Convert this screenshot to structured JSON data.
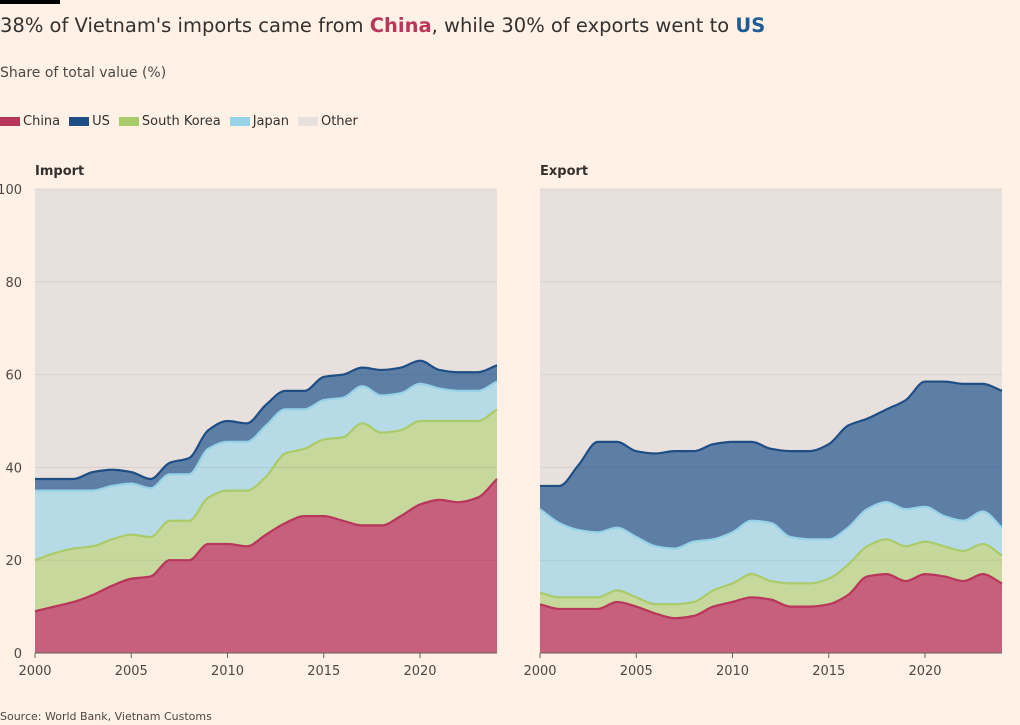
{
  "header": {
    "title_part1": "38% of Vietnam's imports came from ",
    "title_china": "China",
    "title_part2": ", while 30% of exports went to ",
    "title_us": "US",
    "subtitle": "Share of total value (%)"
  },
  "source": "Source: World Bank, Vietnam Customs",
  "colors": {
    "China": "#c6607d",
    "China_line": "#b8365a",
    "US": "#5d7fa6",
    "US_line": "#1f4e84",
    "South Korea": "#c7d89d",
    "South Korea_line": "#a9cb69",
    "Japan": "#b7dbe6",
    "Japan_line": "#98d2e6",
    "Other": "#e8e0dc",
    "grid": "#f5d8c2"
  },
  "chart_data": [
    {
      "type": "area",
      "stacked": true,
      "panel_title": "Import",
      "legend": [
        "China",
        "US",
        "South Korea",
        "Japan",
        "Other"
      ],
      "x": [
        2000,
        2001,
        2002,
        2003,
        2004,
        2005,
        2006,
        2007,
        2008,
        2009,
        2010,
        2011,
        2012,
        2013,
        2014,
        2015,
        2016,
        2017,
        2018,
        2019,
        2020,
        2021,
        2022,
        2023,
        2024
      ],
      "ylim": [
        0,
        100
      ],
      "yticks": [
        0,
        20,
        40,
        60,
        80,
        100
      ],
      "xticks": [
        2000,
        2005,
        2010,
        2015,
        2020
      ],
      "series": [
        {
          "name": "China",
          "values": [
            9,
            10,
            11,
            12.5,
            14.5,
            16,
            16.5,
            20,
            20,
            23.5,
            23.5,
            23,
            25.5,
            28,
            29.5,
            29.5,
            28.5,
            27.5,
            27.5,
            29.5,
            32,
            33,
            32.5,
            33.5,
            37.5
          ]
        },
        {
          "name": "South Korea",
          "values": [
            11,
            11.5,
            11.5,
            10.5,
            10,
            9.5,
            8.5,
            8.5,
            8.5,
            10,
            11.5,
            12,
            12.5,
            15,
            14.5,
            16.5,
            18,
            22,
            20,
            18.5,
            18,
            17,
            17.5,
            16.5,
            15
          ]
        },
        {
          "name": "Japan",
          "values": [
            15,
            13.5,
            12.5,
            12,
            11.5,
            11,
            10.5,
            10,
            10,
            10.5,
            10.5,
            10.5,
            11,
            9.5,
            8.5,
            8.5,
            8.5,
            8,
            8,
            8,
            8,
            7,
            6.5,
            6.5,
            6
          ]
        },
        {
          "name": "US",
          "values": [
            2.5,
            2.5,
            2.5,
            4,
            3.5,
            2.5,
            2,
            2.5,
            3.5,
            4,
            4.5,
            4,
            4.5,
            4,
            4,
            5,
            5,
            4,
            5.5,
            5.5,
            5,
            4,
            4,
            4,
            3.5
          ]
        },
        {
          "name": "Other",
          "values": [
            62.5,
            62.5,
            62.5,
            61,
            60.5,
            61,
            62.5,
            59,
            58,
            52,
            50,
            50.5,
            46.5,
            43.5,
            43.5,
            40.5,
            40,
            38.5,
            39,
            38.5,
            37,
            39,
            39.5,
            39.5,
            38
          ]
        }
      ]
    },
    {
      "type": "area",
      "stacked": true,
      "panel_title": "Export",
      "x": [
        2000,
        2001,
        2002,
        2003,
        2004,
        2005,
        2006,
        2007,
        2008,
        2009,
        2010,
        2011,
        2012,
        2013,
        2014,
        2015,
        2016,
        2017,
        2018,
        2019,
        2020,
        2021,
        2022,
        2023,
        2024
      ],
      "ylim": [
        0,
        100
      ],
      "yticks": [
        0,
        20,
        40,
        60,
        80,
        100
      ],
      "xticks": [
        2000,
        2005,
        2010,
        2015,
        2020
      ],
      "series": [
        {
          "name": "China",
          "values": [
            10.5,
            9.5,
            9.5,
            9.5,
            11,
            10,
            8.5,
            7.5,
            8,
            10,
            11,
            12,
            11.5,
            10,
            10,
            10.5,
            12.5,
            16.5,
            17,
            15.5,
            17,
            16.5,
            15.5,
            17,
            15
          ]
        },
        {
          "name": "South Korea",
          "values": [
            2.5,
            2.5,
            2.5,
            2.5,
            2.5,
            2,
            2,
            3,
            3,
            3.5,
            4,
            5,
            4,
            5,
            5,
            5.5,
            6.5,
            6.5,
            7.5,
            7.5,
            7,
            6.5,
            6.5,
            6.5,
            6
          ]
        },
        {
          "name": "Japan",
          "values": [
            18,
            16,
            14.5,
            14,
            13.5,
            13,
            12.5,
            12,
            13,
            11,
            11,
            11.5,
            12.5,
            10,
            9.5,
            8.5,
            8,
            8,
            8,
            8,
            7.5,
            6.5,
            6.5,
            7,
            6
          ]
        },
        {
          "name": "US",
          "values": [
            5,
            8,
            14,
            19.5,
            18.5,
            18.5,
            20,
            21,
            19.5,
            20.5,
            19.5,
            17,
            16,
            18.5,
            19,
            20.5,
            22,
            19.5,
            20,
            23.5,
            27,
            29,
            29.5,
            27.5,
            29.5
          ]
        },
        {
          "name": "Other",
          "values": [
            64,
            64,
            59.5,
            54.5,
            54.5,
            56.5,
            57,
            56.5,
            56.5,
            55,
            54.5,
            54.5,
            56,
            56.5,
            56.5,
            55,
            51,
            49.5,
            47.5,
            45.5,
            41.5,
            41.5,
            42,
            42,
            43.5
          ]
        }
      ]
    }
  ]
}
